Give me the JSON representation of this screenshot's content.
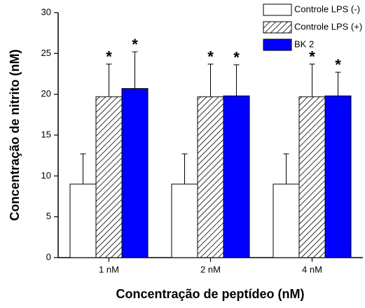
{
  "chart_data": {
    "type": "bar",
    "xlabel": "Concentração de peptídeo (nM)",
    "ylabel": "Concentração de nitrito (nM)",
    "categories": [
      "1 nM",
      "2 nM",
      "4 nM"
    ],
    "series": [
      {
        "name": "Controle LPS (-)",
        "color": "#ffffff",
        "values": [
          9,
          9,
          9
        ],
        "errors": [
          3.7,
          3.7,
          3.7
        ]
      },
      {
        "name": "Controle LPS (+)",
        "color": "hatch",
        "values": [
          19.7,
          19.7,
          19.7
        ],
        "errors": [
          4,
          4,
          4
        ],
        "annotations": [
          "*",
          "*",
          "*"
        ]
      },
      {
        "name": "BK 2",
        "color": "#0000ff",
        "values": [
          20.7,
          19.8,
          19.8
        ],
        "errors": [
          4.5,
          3.8,
          2.9
        ],
        "annotations": [
          "*",
          "*",
          "*"
        ]
      }
    ],
    "ylim": [
      0,
      30
    ],
    "yticks": [
      0,
      5,
      10,
      15,
      20,
      25,
      30
    ],
    "legend": "upper right"
  }
}
